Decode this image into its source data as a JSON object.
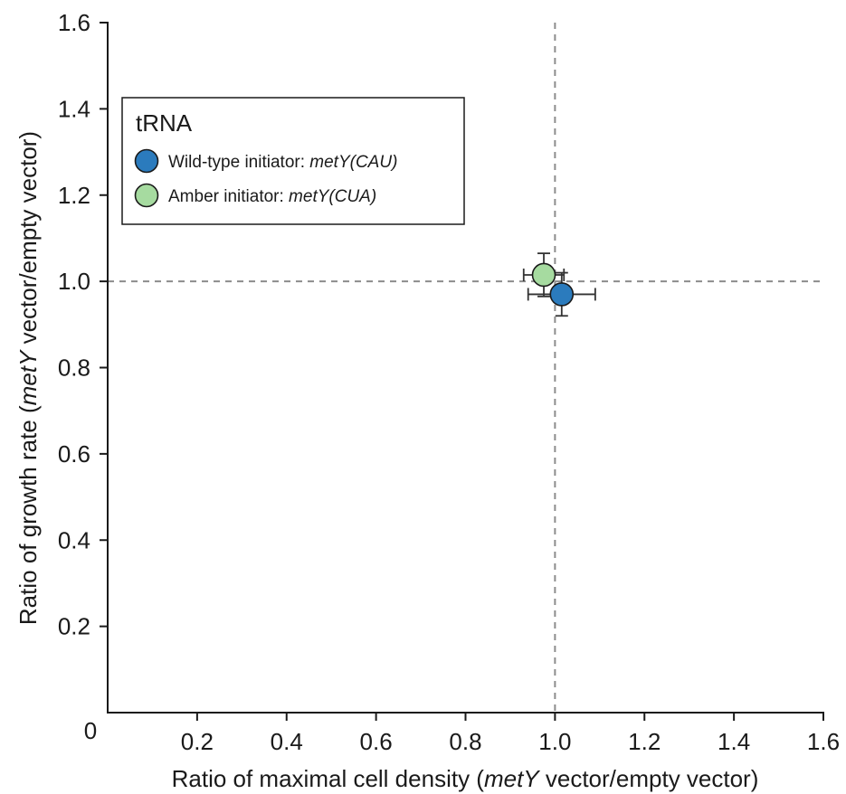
{
  "chart_data": {
    "type": "scatter",
    "xlabel_parts": [
      "Ratio of maximal cell density (",
      "metY",
      " vector/empty vector)"
    ],
    "ylabel_parts": [
      "Ratio of growth rate (",
      "metY",
      " vector/empty vector)"
    ],
    "xlim": [
      0,
      1.6
    ],
    "ylim": [
      0,
      1.6
    ],
    "origin_label": "0",
    "x_ticks": [
      {
        "value": 0.2,
        "label": "0.2"
      },
      {
        "value": 0.4,
        "label": "0.4"
      },
      {
        "value": 0.6,
        "label": "0.6"
      },
      {
        "value": 0.8,
        "label": "0.8"
      },
      {
        "value": 1.0,
        "label": "1.0"
      },
      {
        "value": 1.2,
        "label": "1.2"
      },
      {
        "value": 1.4,
        "label": "1.4"
      },
      {
        "value": 1.6,
        "label": "1.6"
      }
    ],
    "y_ticks": [
      {
        "value": 0.2,
        "label": "0.2"
      },
      {
        "value": 0.4,
        "label": "0.4"
      },
      {
        "value": 0.6,
        "label": "0.6"
      },
      {
        "value": 0.8,
        "label": "0.8"
      },
      {
        "value": 1.0,
        "label": "1.0"
      },
      {
        "value": 1.2,
        "label": "1.2"
      },
      {
        "value": 1.4,
        "label": "1.4"
      },
      {
        "value": 1.6,
        "label": "1.6"
      }
    ],
    "reference_lines": {
      "x": 1.0,
      "y": 1.0,
      "style": "dashed"
    },
    "grid": false,
    "legend": {
      "title": "tRNA",
      "position": "top-left",
      "entries": [
        {
          "prefix": "Wild-type initiator: ",
          "italic": "metY(CAU)"
        },
        {
          "prefix": "Amber initiator: ",
          "italic": "metY(CUA)"
        }
      ]
    },
    "series": [
      {
        "x": 1.015,
        "y": 0.97,
        "x_err": 0.075,
        "y_err": 0.05,
        "color": "#2b7bbd"
      },
      {
        "x": 0.975,
        "y": 1.015,
        "x_err": 0.045,
        "y_err": 0.05,
        "color": "#a6dba0"
      }
    ]
  }
}
